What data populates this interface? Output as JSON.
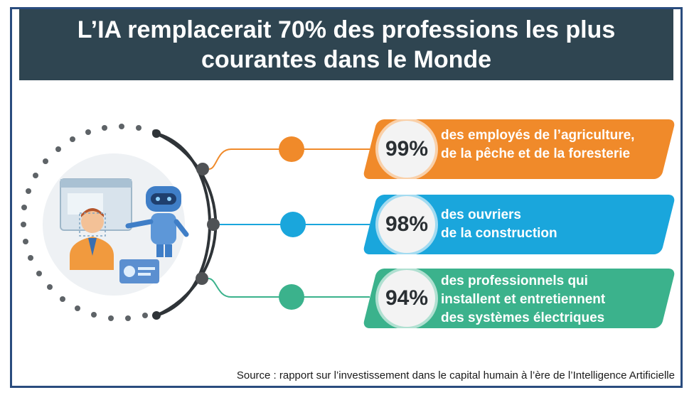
{
  "title": "L’IA remplacerait 70% des professions les plus courantes dans le Monde",
  "stats": [
    {
      "percent": "99%",
      "line1": "des employés de l’agriculture,",
      "line2": "de la pêche et de la foresterie",
      "line3": "",
      "color": "#f08a2a"
    },
    {
      "percent": "98%",
      "line1": "des ouvriers",
      "line2": "de la construction",
      "line3": "",
      "color": "#1aa6dc"
    },
    {
      "percent": "94%",
      "line1": "des professionnels qui",
      "line2": "installent et entretiennent",
      "line3": "des systèmes électriques",
      "color": "#3bb28c"
    }
  ],
  "source": "Source : rapport sur l’investissement dans le capital humain à l’ère de l’Intelligence Artificielle",
  "icons": [
    "person-icon",
    "robot-icon",
    "screen-icon",
    "id-card-icon"
  ]
}
